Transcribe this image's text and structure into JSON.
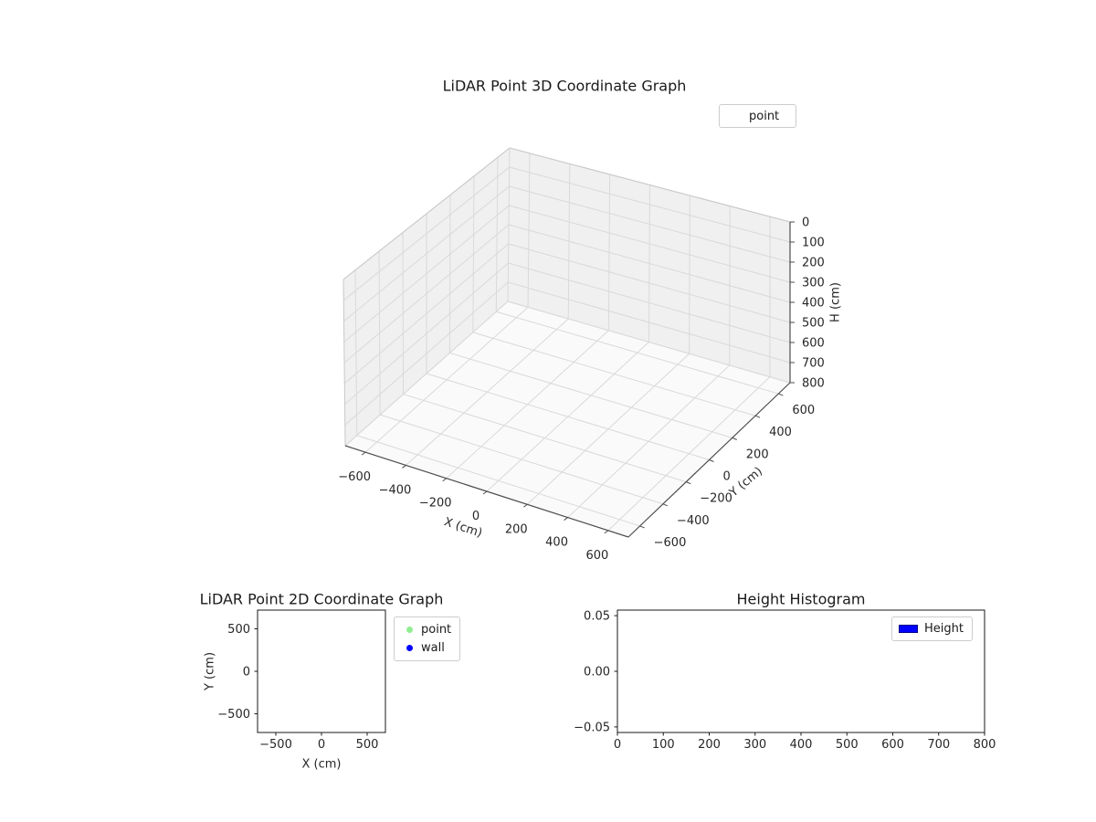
{
  "chart_data": [
    {
      "type": "scatter3d",
      "title": "LiDAR Point 3D Coordinate Graph",
      "xlabel": "X (cm)",
      "ylabel": "Y (cm)",
      "zlabel": "H (cm)",
      "xlim": [
        -700,
        700
      ],
      "ylim": [
        -700,
        700
      ],
      "zlim": [
        0,
        800
      ],
      "zaxis_inverted": true,
      "grid": true,
      "xticks": [
        -600,
        -400,
        -200,
        0,
        200,
        400,
        600
      ],
      "yticks": [
        -600,
        -400,
        -200,
        0,
        200,
        400,
        600
      ],
      "zticks": [
        0,
        100,
        200,
        300,
        400,
        500,
        600,
        700,
        800
      ],
      "legend": {
        "position": "upper right",
        "entries": [
          {
            "label": "point"
          }
        ]
      },
      "series": [
        {
          "name": "point",
          "points": []
        }
      ]
    },
    {
      "type": "scatter",
      "title": "LiDAR Point 2D Coordinate Graph",
      "xlabel": "X (cm)",
      "ylabel": "Y (cm)",
      "xlim": [
        -700,
        700
      ],
      "ylim": [
        -720,
        720
      ],
      "grid": false,
      "xticks": [
        -500,
        0,
        500
      ],
      "yticks": [
        -500,
        0,
        500
      ],
      "legend": {
        "position": "outside upper right",
        "entries": [
          {
            "label": "point",
            "color": "#90ee90"
          },
          {
            "label": "wall",
            "color": "#0000ff"
          }
        ]
      },
      "series": [
        {
          "name": "point",
          "color": "#90ee90",
          "points": []
        },
        {
          "name": "wall",
          "color": "#0000ff",
          "points": []
        }
      ]
    },
    {
      "type": "histogram",
      "title": "Height Histogram",
      "xlim": [
        0,
        800
      ],
      "ylim": [
        -0.055,
        0.055
      ],
      "grid": false,
      "xticks": [
        0,
        100,
        200,
        300,
        400,
        500,
        600,
        700,
        800
      ],
      "yticks": {
        "values": [
          -0.05,
          0,
          0.05
        ],
        "labels": [
          "−0.05",
          "0.00",
          "0.05"
        ]
      },
      "legend": {
        "position": "upper right",
        "entries": [
          {
            "label": "Height",
            "color": "#0000ff"
          }
        ]
      },
      "values": []
    }
  ],
  "colors": {
    "pane_wall": "#f0f0f0",
    "pane_floor": "#fafafa",
    "grid": "#d9d9d9",
    "box_light": "#c8c8c8",
    "axis_dark": "#4d4d4d",
    "spine": "#1a1a1a",
    "tick_text": "#262626"
  }
}
